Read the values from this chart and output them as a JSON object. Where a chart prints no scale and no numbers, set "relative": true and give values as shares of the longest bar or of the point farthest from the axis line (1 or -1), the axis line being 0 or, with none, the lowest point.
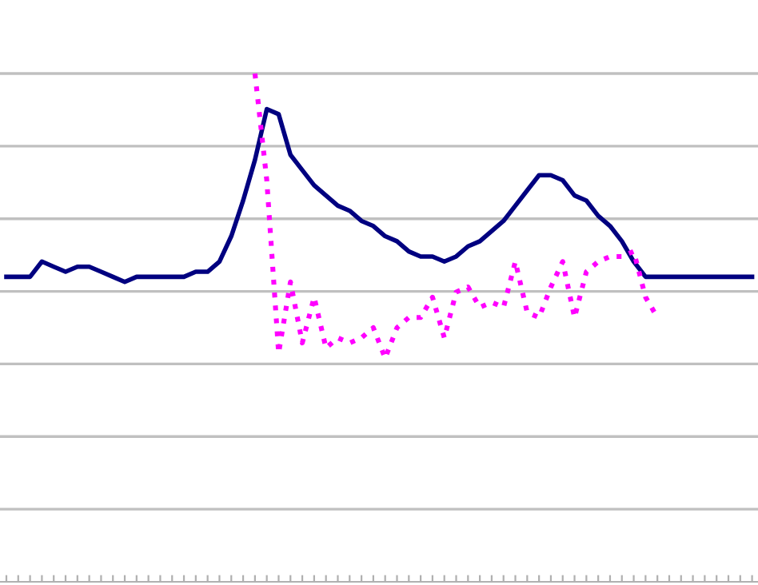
{
  "chart_data": {
    "type": "line",
    "relative": true,
    "grid": "y",
    "legend": false,
    "categories": [
      null,
      null,
      null,
      null,
      null,
      null,
      null,
      null,
      null,
      null,
      null,
      null,
      null,
      null,
      null,
      null,
      null,
      null,
      null,
      null,
      null,
      null,
      null,
      null,
      null,
      null,
      null,
      null,
      null,
      null,
      null,
      null,
      null,
      null,
      null,
      null,
      null,
      null,
      null,
      null,
      null,
      null,
      null,
      null,
      null,
      null,
      null,
      null,
      null,
      null,
      null,
      null,
      null,
      null,
      null,
      null,
      null,
      null,
      null,
      null,
      null,
      null,
      null,
      null
    ],
    "series": [
      {
        "color": "#000080",
        "line_style": "solid",
        "values": [
          0.6,
          0.6,
          0.6,
          0.63,
          0.62,
          0.61,
          0.62,
          0.62,
          0.61,
          0.6,
          0.59,
          0.6,
          0.6,
          0.6,
          0.6,
          0.6,
          0.61,
          0.61,
          0.63,
          0.68,
          0.75,
          0.83,
          0.93,
          0.92,
          0.84,
          0.81,
          0.78,
          0.76,
          0.74,
          0.73,
          0.71,
          0.7,
          0.68,
          0.67,
          0.65,
          0.64,
          0.64,
          0.63,
          0.64,
          0.66,
          0.67,
          0.69,
          0.71,
          0.74,
          0.77,
          0.8,
          0.8,
          0.79,
          0.76,
          0.75,
          0.72,
          0.7,
          0.67,
          0.63,
          0.6,
          0.6,
          0.6,
          0.6,
          0.6,
          0.6,
          0.6,
          0.6,
          0.6,
          0.6
        ]
      },
      {
        "color": "#ff00ff",
        "line_style": "dotted",
        "values": [
          null,
          null,
          null,
          null,
          null,
          null,
          null,
          null,
          null,
          null,
          null,
          null,
          null,
          null,
          null,
          null,
          null,
          null,
          null,
          null,
          null,
          1.0,
          0.79,
          0.45,
          0.59,
          0.47,
          0.56,
          0.46,
          0.48,
          0.47,
          0.48,
          0.5,
          0.44,
          0.5,
          0.52,
          0.52,
          0.56,
          0.48,
          0.57,
          0.58,
          0.54,
          0.55,
          0.54,
          0.63,
          0.53,
          0.52,
          0.58,
          0.63,
          0.52,
          0.61,
          0.63,
          0.64,
          0.64,
          0.65,
          0.56,
          0.52,
          null,
          null,
          null,
          null,
          null,
          null,
          null,
          null
        ]
      }
    ]
  }
}
